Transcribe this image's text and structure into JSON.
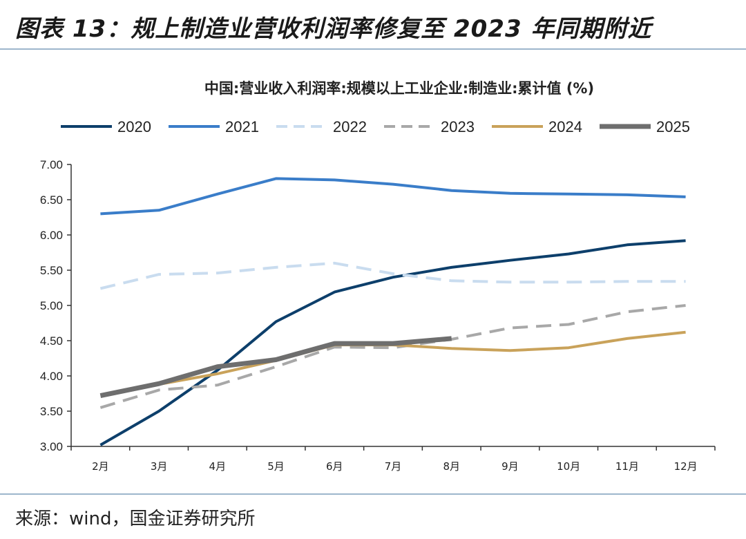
{
  "figure": {
    "title": "图表 13：规上制造业营收利润率修复至 2023 年同期附近",
    "source": "来源：wind，国金证券研究所"
  },
  "colors": {
    "2020": "#0d3f6b",
    "2021": "#3a7dc9",
    "2022": "#c9dcef",
    "2023": "#a8a8a8",
    "2024": "#c9a25a",
    "2025": "#6e6e6e",
    "axis": "#333333",
    "rule": "#9db6cc"
  },
  "chart_data": {
    "type": "line",
    "title": "中国:营业收入利润率:规模以上工业企业:制造业:累计值 (%)",
    "xlabel": "",
    "ylabel": "",
    "ylim": [
      3.0,
      7.0
    ],
    "yticks": [
      "7.00",
      "6.50",
      "6.00",
      "5.50",
      "5.00",
      "4.50",
      "4.00",
      "3.50",
      "3.00"
    ],
    "grid": false,
    "legend_position": "top",
    "categories": [
      "2月",
      "3月",
      "4月",
      "5月",
      "6月",
      "7月",
      "8月",
      "9月",
      "10月",
      "11月",
      "12月"
    ],
    "series": [
      {
        "name": "2020",
        "style": "solid",
        "values": [
          3.02,
          3.5,
          4.08,
          4.77,
          5.19,
          5.4,
          5.54,
          5.64,
          5.73,
          5.86,
          5.92
        ]
      },
      {
        "name": "2021",
        "style": "solid",
        "values": [
          6.3,
          6.35,
          6.58,
          6.8,
          6.78,
          6.72,
          6.63,
          6.59,
          6.58,
          6.57,
          6.54
        ]
      },
      {
        "name": "2022",
        "style": "dashed",
        "values": [
          5.24,
          5.44,
          5.46,
          5.54,
          5.6,
          5.45,
          5.35,
          5.33,
          5.33,
          5.34,
          5.34
        ]
      },
      {
        "name": "2023",
        "style": "dashed",
        "values": [
          3.55,
          3.8,
          3.87,
          4.13,
          4.41,
          4.4,
          4.52,
          4.68,
          4.73,
          4.91,
          5.0
        ]
      },
      {
        "name": "2024",
        "style": "solid",
        "values": [
          3.73,
          3.88,
          4.03,
          4.22,
          4.44,
          4.44,
          4.39,
          4.36,
          4.4,
          4.53,
          4.62
        ]
      },
      {
        "name": "2025",
        "style": "solid-thick",
        "values": [
          3.72,
          3.89,
          4.13,
          4.23,
          4.46,
          4.46,
          4.53,
          null,
          null,
          null,
          null
        ]
      }
    ]
  }
}
